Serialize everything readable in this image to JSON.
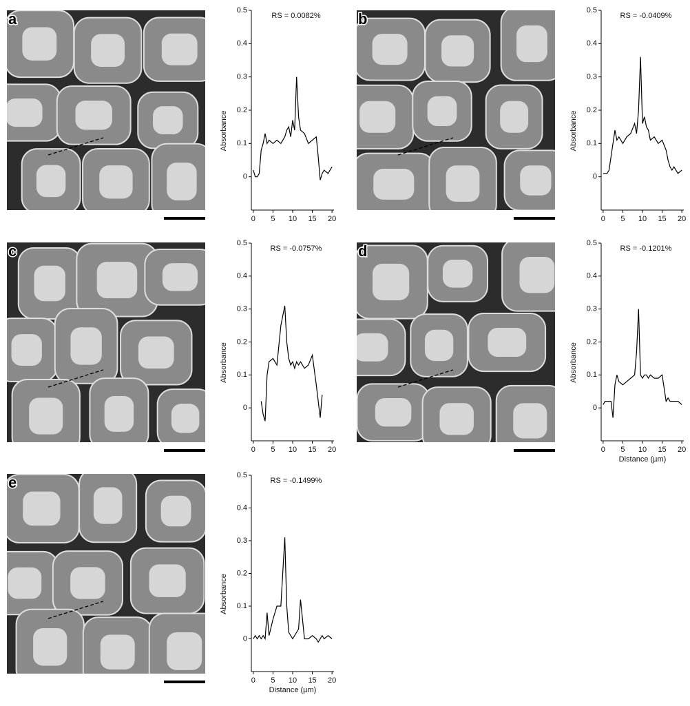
{
  "chart_data": [
    {
      "type": "line",
      "label": "a",
      "annotation": "RS = 0.0082%",
      "ylabel": "Absorbance",
      "color": "#000000",
      "x": [
        0,
        0.5,
        1,
        1.5,
        2,
        2.5,
        3,
        3.5,
        4,
        5,
        6,
        7,
        8,
        8.5,
        9,
        9.5,
        10,
        10.5,
        11,
        11.5,
        12,
        13,
        14,
        15,
        16,
        16.5,
        17,
        17.5,
        18,
        19,
        20
      ],
      "values": [
        0.02,
        0,
        0,
        0.01,
        0.08,
        0.1,
        0.13,
        0.1,
        0.11,
        0.1,
        0.11,
        0.1,
        0.12,
        0.14,
        0.15,
        0.12,
        0.17,
        0.14,
        0.3,
        0.18,
        0.14,
        0.13,
        0.1,
        0.11,
        0.12,
        0.06,
        -0.01,
        0.01,
        0.02,
        0.01,
        0.03
      ],
      "xlim": [
        -0.5,
        20.5
      ],
      "ylim": [
        -0.1,
        0.5
      ],
      "xticks": [
        0,
        5,
        10,
        15,
        20
      ],
      "yticks": [
        0,
        0.1,
        0.2,
        0.3,
        0.4,
        0.5
      ]
    },
    {
      "type": "line",
      "label": "b",
      "annotation": "RS = -0.0409%",
      "ylabel": "Absorbance",
      "color": "#000000",
      "x": [
        0,
        0.5,
        1,
        1.5,
        2,
        2.5,
        3,
        3.5,
        4,
        5,
        6,
        7,
        8,
        8.5,
        9,
        9.5,
        10,
        10.5,
        11,
        11.5,
        12,
        13,
        14,
        15,
        16,
        16.5,
        17,
        17.5,
        18,
        19,
        20
      ],
      "values": [
        0.01,
        0.01,
        0.01,
        0.02,
        0.06,
        0.1,
        0.14,
        0.11,
        0.12,
        0.1,
        0.12,
        0.13,
        0.16,
        0.13,
        0.2,
        0.36,
        0.16,
        0.18,
        0.15,
        0.14,
        0.11,
        0.12,
        0.1,
        0.11,
        0.08,
        0.05,
        0.03,
        0.02,
        0.03,
        0.01,
        0.02
      ],
      "xlim": [
        -0.5,
        20.5
      ],
      "ylim": [
        -0.1,
        0.5
      ],
      "xticks": [
        0,
        5,
        10,
        15,
        20
      ],
      "yticks": [
        0,
        0.1,
        0.2,
        0.3,
        0.4,
        0.5
      ]
    },
    {
      "type": "line",
      "label": "c",
      "annotation": "RS = -0.0757%",
      "ylabel": "Absorbance",
      "color": "#000000",
      "x": [
        0,
        0.5,
        1,
        1.5,
        2,
        2.5,
        3,
        3.5,
        4,
        5,
        6,
        7,
        8,
        8.5,
        9,
        9.5,
        10,
        10.5,
        11,
        11.5,
        12,
        13,
        14,
        15,
        16,
        16.5,
        17,
        17.5,
        18,
        19,
        20
      ],
      "values": [
        null,
        null,
        null,
        null,
        0.02,
        -0.02,
        -0.04,
        0.1,
        0.14,
        0.15,
        0.13,
        0.25,
        0.31,
        0.2,
        0.15,
        0.13,
        0.14,
        0.12,
        0.14,
        0.13,
        0.14,
        0.12,
        0.13,
        0.16,
        0.07,
        0.02,
        -0.03,
        0.04,
        null,
        null,
        null
      ],
      "xlim": [
        -0.5,
        20.5
      ],
      "ylim": [
        -0.1,
        0.5
      ],
      "xticks": [
        0,
        5,
        10,
        15,
        20
      ],
      "yticks": [
        0,
        0.1,
        0.2,
        0.3,
        0.4,
        0.5
      ]
    },
    {
      "type": "line",
      "label": "d",
      "annotation": "RS = -0.1201%",
      "ylabel": "Absorbance",
      "xlabel": "Distance (µm)",
      "color": "#000000",
      "x": [
        0,
        0.5,
        1,
        1.5,
        2,
        2.5,
        3,
        3.5,
        4,
        5,
        6,
        7,
        8,
        8.5,
        9,
        9.5,
        10,
        10.5,
        11,
        11.5,
        12,
        13,
        14,
        15,
        16,
        16.5,
        17,
        17.5,
        18,
        19,
        20
      ],
      "values": [
        0.01,
        0.02,
        0.02,
        0.02,
        0.02,
        -0.03,
        0.07,
        0.1,
        0.08,
        0.07,
        0.08,
        0.09,
        0.1,
        0.17,
        0.3,
        0.1,
        0.09,
        0.1,
        0.1,
        0.09,
        0.1,
        0.09,
        0.09,
        0.1,
        0.02,
        0.03,
        0.02,
        0.02,
        0.02,
        0.02,
        0.01
      ],
      "xlim": [
        -0.5,
        20.5
      ],
      "ylim": [
        -0.1,
        0.5
      ],
      "xticks": [
        0,
        5,
        10,
        15,
        20
      ],
      "yticks": [
        0,
        0.1,
        0.2,
        0.3,
        0.4,
        0.5
      ]
    },
    {
      "type": "line",
      "label": "e",
      "annotation": "RS = -0.1499%",
      "ylabel": "Absorbance",
      "xlabel": "Distance (µm)",
      "color": "#000000",
      "x": [
        0,
        0.5,
        1,
        1.5,
        2,
        2.5,
        3,
        3.5,
        4,
        5,
        6,
        7,
        8,
        8.5,
        9,
        9.5,
        10,
        10.5,
        11,
        11.5,
        12,
        13,
        14,
        15,
        16,
        16.5,
        17,
        17.5,
        18,
        19,
        20
      ],
      "values": [
        0,
        0.01,
        0,
        0.01,
        0,
        0.01,
        0,
        0.08,
        0.01,
        0.06,
        0.1,
        0.1,
        0.31,
        0.1,
        0.02,
        0.01,
        0,
        0.01,
        0.02,
        0.03,
        0.12,
        0,
        0,
        0.01,
        0,
        -0.01,
        0,
        0.01,
        0,
        0.01,
        0
      ],
      "xlim": [
        -0.5,
        20.5
      ],
      "ylim": [
        -0.1,
        0.5
      ],
      "xticks": [
        0,
        5,
        10,
        15,
        20
      ],
      "yticks": [
        0,
        0.1,
        0.2,
        0.3,
        0.4,
        0.5
      ]
    }
  ]
}
